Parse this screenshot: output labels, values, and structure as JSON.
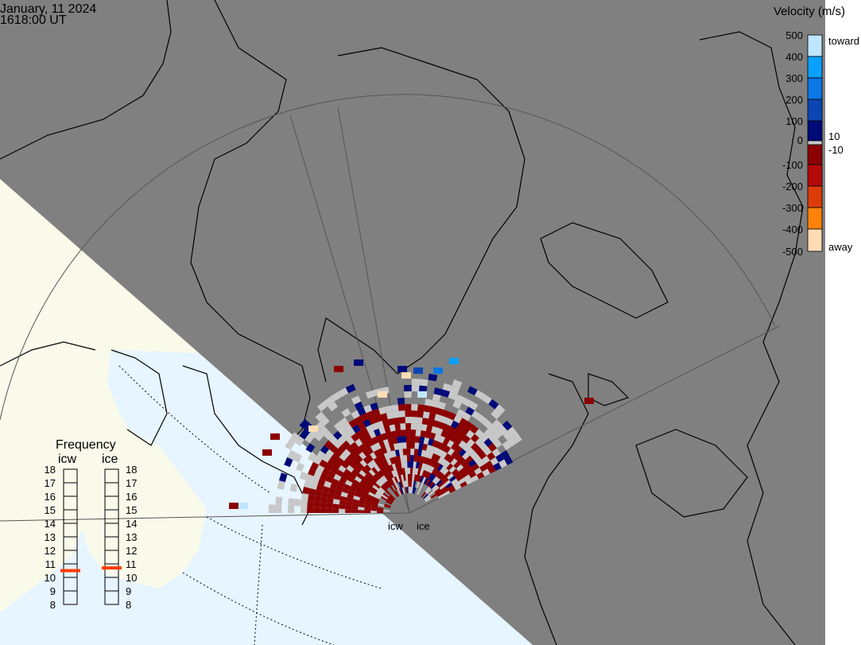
{
  "header": {
    "date": "January, 11 2024",
    "time": "1618:00 UT"
  },
  "colorbar": {
    "title": "Velocity (m/s)",
    "ticks": [
      "500",
      "400",
      "300",
      "200",
      "100",
      "0",
      "-100",
      "-200",
      "-300",
      "-400",
      "-500"
    ],
    "side_labels": {
      "toward": "toward",
      "ten": "10",
      "minus_ten": "-10",
      "away": "away"
    },
    "colors": [
      "#bfe6ff",
      "#0aa0ff",
      "#0a78e6",
      "#0a46b4",
      "#000a78",
      "#c8c8c8",
      "#8c0000",
      "#b40a0a",
      "#dc3c0a",
      "#ff820a",
      "#ffdcb4"
    ]
  },
  "radar": {
    "labels": [
      "icw",
      "ice"
    ]
  },
  "frequency": {
    "title": "Frequency",
    "stations": [
      {
        "name": "icw",
        "value_mhz": 10.5
      },
      {
        "name": "ice",
        "value_mhz": 10.7
      }
    ],
    "ticks": [
      "18",
      "17",
      "16",
      "15",
      "14",
      "13",
      "12",
      "11",
      "10",
      "9",
      "8"
    ],
    "range": [
      8,
      18
    ],
    "marker_color": "#ff3c00"
  },
  "map": {
    "night_color": "#808080",
    "day_land_color": "#fafaeb",
    "day_ocean_color": "#e6f5ff",
    "velocity_cell_colors": {
      "away_low": "#8c0000",
      "ground_scatter": "#c8c8c8",
      "toward_low": "#000a78"
    }
  }
}
